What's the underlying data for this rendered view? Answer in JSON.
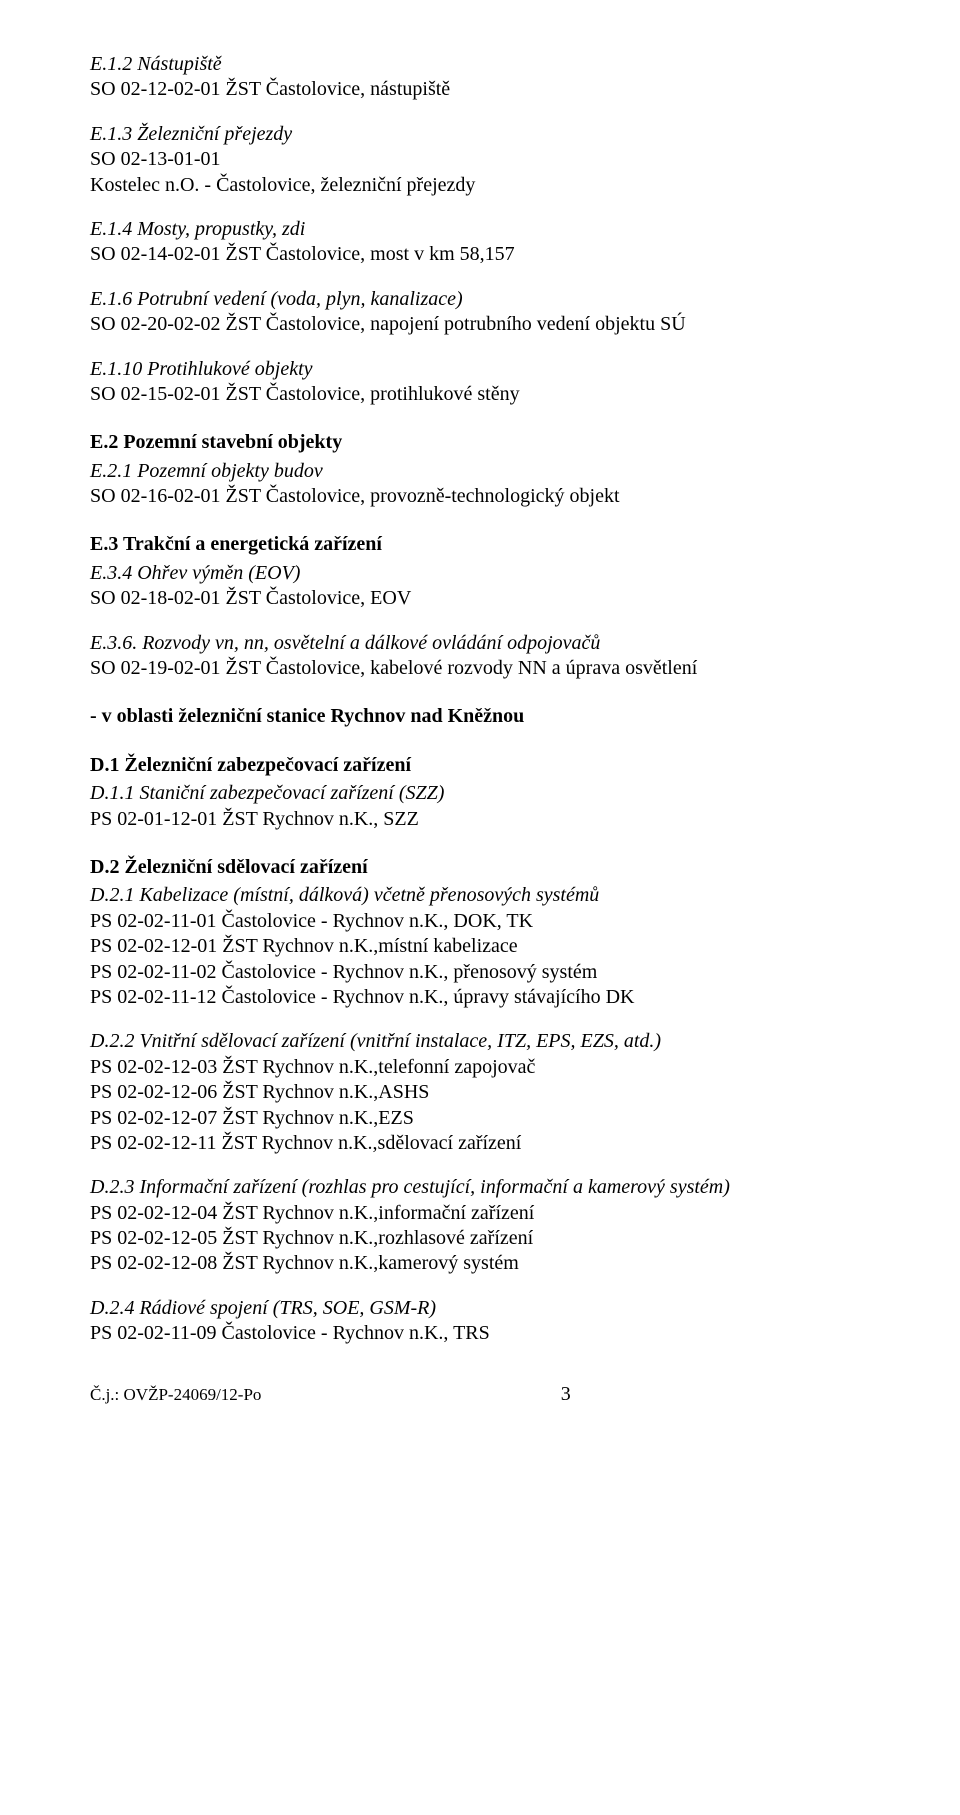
{
  "doc": {
    "blocks": [
      {
        "heading_italic": "E.1.2 Nástupiště",
        "entries": [
          "SO 02-12-02-01 ŽST Častolovice, nástupiště"
        ]
      },
      {
        "heading_italic": "E.1.3 Železniční přejezdy",
        "entries": [
          "SO 02-13-01-01",
          "Kostelec n.O. - Častolovice, železniční přejezdy"
        ]
      },
      {
        "heading_italic": "E.1.4 Mosty, propustky, zdi",
        "entries": [
          "SO 02-14-02-01 ŽST Častolovice, most v km 58,157"
        ]
      },
      {
        "heading_italic": "E.1.6 Potrubní vedení (voda, plyn, kanalizace)",
        "entries": [
          "SO 02-20-02-02 ŽST Častolovice, napojení potrubního vedení objektu SÚ"
        ]
      },
      {
        "heading_italic": "E.1.10 Protihlukové objekty",
        "entries": [
          "SO 02-15-02-01 ŽST Častolovice, protihlukové stěny"
        ]
      },
      {
        "heading_bold": "E.2 Pozemní stavební objekty",
        "sub": [
          {
            "heading_italic": "E.2.1 Pozemní objekty budov",
            "entries": [
              "SO 02-16-02-01 ŽST Častolovice, provozně-technologický objekt"
            ]
          }
        ]
      },
      {
        "heading_bold": "E.3 Trakční a energetická zařízení",
        "sub": [
          {
            "heading_italic": "E.3.4 Ohřev výměn (EOV)",
            "entries": [
              "SO 02-18-02-01 ŽST Častolovice, EOV"
            ]
          },
          {
            "heading_italic": "E.3.6. Rozvody vn, nn, osvětelní a dálkové ovládání odpojovačů",
            "entries": [
              "SO 02-19-02-01 ŽST Častolovice, kabelové rozvody NN a úprava osvětlení"
            ]
          }
        ]
      },
      {
        "heading_bold": "- v oblasti železniční stanice Rychnov nad Kněžnou"
      },
      {
        "heading_bold": "D.1 Železniční zabezpečovací zařízení",
        "sub": [
          {
            "heading_italic": "D.1.1 Staniční zabezpečovací zařízení (SZZ)",
            "entries": [
              "PS 02-01-12-01 ŽST Rychnov n.K., SZZ"
            ]
          }
        ]
      },
      {
        "heading_bold": "D.2 Železniční sdělovací zařízení",
        "sub": [
          {
            "heading_italic": "D.2.1 Kabelizace (místní, dálková) včetně přenosových systémů",
            "entries": [
              "PS 02-02-11-01 Častolovice - Rychnov n.K., DOK, TK",
              "PS 02-02-12-01 ŽST Rychnov n.K.,místní kabelizace",
              "PS 02-02-11-02 Častolovice - Rychnov n.K., přenosový systém",
              "PS 02-02-11-12 Častolovice - Rychnov n.K., úpravy stávajícího DK"
            ]
          },
          {
            "heading_italic": "D.2.2 Vnitřní sdělovací zařízení (vnitřní instalace, ITZ, EPS, EZS, atd.)",
            "entries": [
              "PS 02-02-12-03 ŽST Rychnov n.K.,telefonní zapojovač",
              "PS 02-02-12-06 ŽST Rychnov n.K.,ASHS",
              "PS 02-02-12-07 ŽST Rychnov n.K.,EZS",
              "PS 02-02-12-11 ŽST Rychnov n.K.,sdělovací zařízení"
            ]
          },
          {
            "heading_italic": "D.2.3 Informační zařízení (rozhlas pro cestující, informační a kamerový systém)",
            "entries": [
              "PS 02-02-12-04 ŽST Rychnov n.K.,informační zařízení",
              "PS 02-02-12-05 ŽST Rychnov n.K.,rozhlasové zařízení",
              "PS 02-02-12-08 ŽST Rychnov n.K.,kamerový systém"
            ]
          },
          {
            "heading_italic": "D.2.4 Rádiové spojení (TRS, SOE, GSM-R)",
            "entries": [
              "PS 02-02-11-09 Častolovice - Rychnov n.K., TRS"
            ]
          }
        ]
      }
    ],
    "footer_left": "Č.j.: OVŽP-24069/12-Po",
    "footer_page": "3"
  }
}
